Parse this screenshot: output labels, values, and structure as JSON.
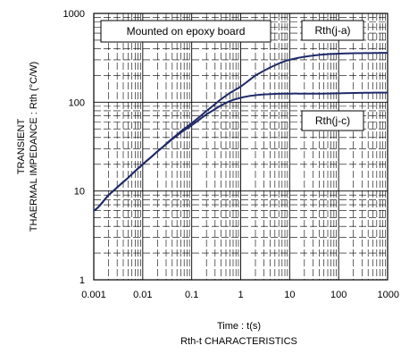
{
  "chart_data": {
    "type": "line",
    "title": "",
    "caption": "Rth-t  CHARACTERISTICS",
    "xlabel": "Time : t(s)",
    "ylabel_line1": "TRANSIENT",
    "ylabel_line2": "THAERMAL IMPEDANCE : Rth (°C/W)",
    "x_scale": "log",
    "y_scale": "log",
    "xlim": [
      0.001,
      1000
    ],
    "ylim": [
      1,
      1000
    ],
    "x_ticks": [
      "0.001",
      "0.01",
      "0.1",
      "1",
      "10",
      "100",
      "1000"
    ],
    "y_ticks": [
      "1",
      "10",
      "100",
      "1000"
    ],
    "grid": true,
    "annotation": "Mounted on epoxy board",
    "line_color": "#1f2a6b",
    "series": [
      {
        "name": "Rth(j-a)",
        "x": [
          0.001,
          0.002,
          0.005,
          0.01,
          0.02,
          0.05,
          0.1,
          0.2,
          0.5,
          1,
          2,
          5,
          10,
          20,
          50,
          100,
          200,
          500,
          1000
        ],
        "y": [
          6,
          9,
          14,
          20,
          28,
          43,
          58,
          80,
          118,
          150,
          200,
          260,
          300,
          325,
          345,
          352,
          356,
          358,
          360
        ]
      },
      {
        "name": "Rth(j-c)",
        "x": [
          0.001,
          0.002,
          0.005,
          0.01,
          0.02,
          0.05,
          0.1,
          0.2,
          0.5,
          1,
          2,
          5,
          10,
          20,
          50,
          100,
          200,
          500,
          1000
        ],
        "y": [
          6,
          9,
          14,
          20,
          28,
          42,
          55,
          73,
          98,
          112,
          120,
          124,
          125,
          125,
          125,
          126,
          127,
          128,
          128
        ]
      }
    ]
  }
}
